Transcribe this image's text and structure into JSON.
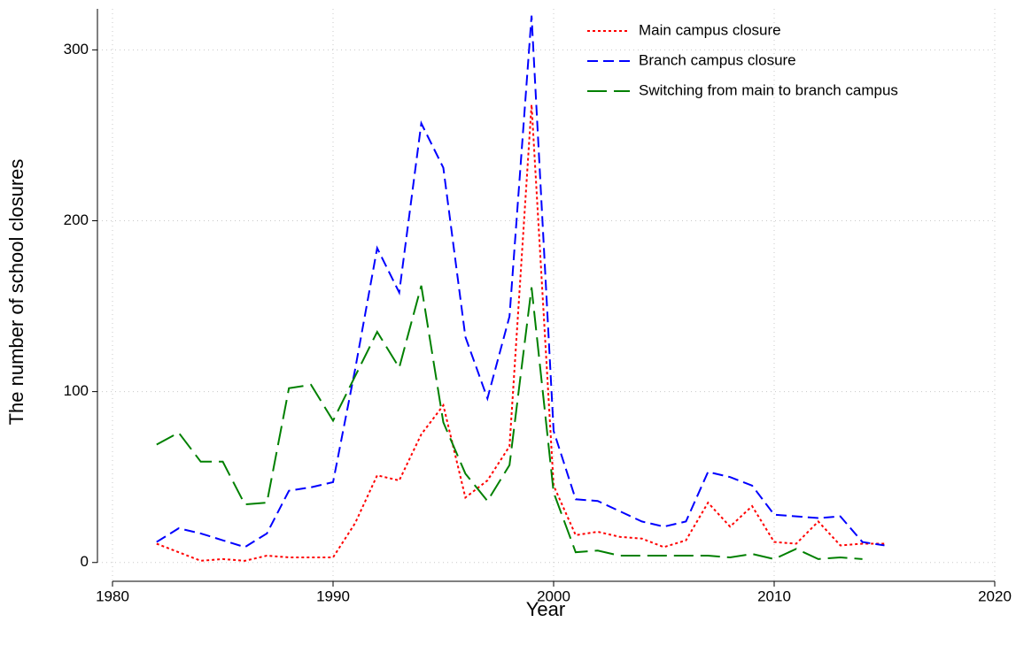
{
  "chart_data": {
    "type": "line",
    "x_label": "Year",
    "y_label": "The number of school closures",
    "x": [
      1982,
      1983,
      1984,
      1985,
      1986,
      1987,
      1988,
      1989,
      1990,
      1991,
      1992,
      1993,
      1994,
      1995,
      1996,
      1997,
      1998,
      1999,
      2000,
      2001,
      2002,
      2003,
      2004,
      2005,
      2006,
      2007,
      2008,
      2009,
      2010,
      2011,
      2012,
      2013,
      2014,
      2015
    ],
    "series": [
      {
        "name": "Main campus closure",
        "color": "#ff0000",
        "linestyle": "dotted",
        "values": [
          11,
          6,
          1,
          2,
          1,
          4,
          3,
          3,
          3,
          23,
          51,
          48,
          75,
          92,
          38,
          48,
          68,
          268,
          45,
          16,
          18,
          15,
          14,
          9,
          13,
          35,
          21,
          33,
          12,
          11,
          24,
          10,
          11,
          11
        ]
      },
      {
        "name": "Branch campus closure",
        "color": "#0000ff",
        "linestyle": "dashed",
        "values": [
          12,
          20,
          17,
          13,
          9,
          17,
          42,
          44,
          47,
          113,
          184,
          158,
          257,
          231,
          132,
          96,
          144,
          320,
          77,
          37,
          36,
          30,
          24,
          21,
          24,
          53,
          50,
          45,
          28,
          27,
          26,
          27,
          12,
          10
        ]
      },
      {
        "name": "Switching from main to branch campus",
        "color": "#008000",
        "linestyle": "longdash",
        "values": [
          69,
          76,
          59,
          59,
          34,
          35,
          102,
          104,
          83,
          109,
          135,
          114,
          162,
          82,
          52,
          36,
          57,
          161,
          41,
          6,
          7,
          4,
          4,
          4,
          4,
          4,
          3,
          5,
          2,
          8,
          2,
          3,
          2,
          null
        ]
      }
    ],
    "xlim": [
      1980,
      2020
    ],
    "xticks": [
      1980,
      1990,
      2000,
      2010,
      2020
    ],
    "ylim": [
      -11,
      324
    ],
    "yticks": [
      0,
      100,
      200,
      300
    ],
    "grid": true,
    "legend": "upper right"
  }
}
